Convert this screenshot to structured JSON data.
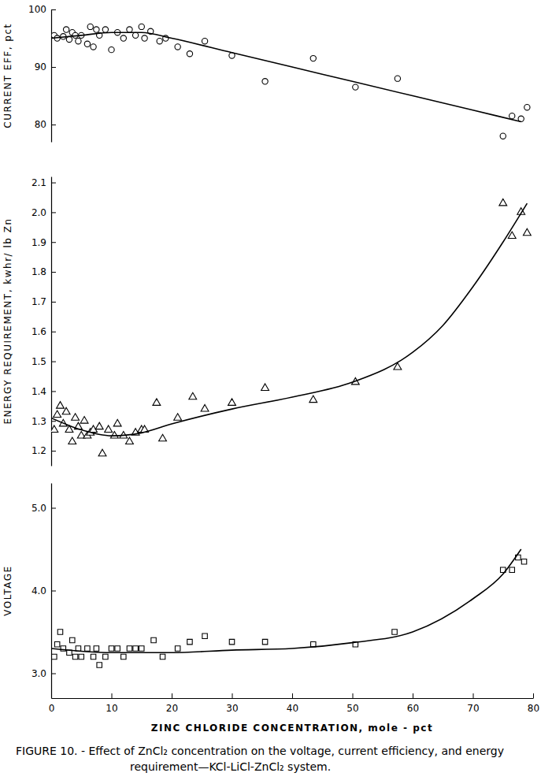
{
  "chart_data": [
    {
      "type": "scatter",
      "ylabel": "CURRENT EFF, pct",
      "xlim": [
        0,
        80
      ],
      "ylim": [
        77,
        100
      ],
      "yticks": [
        80,
        90,
        100
      ],
      "tick_labels": "y",
      "series": [
        {
          "type": "scatter",
          "marker": "circle",
          "color": "#000000",
          "x": [
            0.5,
            1,
            2,
            2.5,
            3,
            3.5,
            4,
            4.5,
            5,
            6,
            6.5,
            7,
            7.5,
            8,
            9,
            10,
            11,
            12,
            13,
            14,
            15,
            15.5,
            16.5,
            18,
            19,
            21,
            23,
            25.5,
            30,
            35.5,
            43.5,
            50.5,
            57.5,
            75,
            76.5,
            78,
            79
          ],
          "values": [
            95.5,
            95,
            95.3,
            96.5,
            94.8,
            96,
            95.5,
            94.5,
            95.5,
            94,
            97,
            93.5,
            96.5,
            95.5,
            96.5,
            93,
            96,
            95,
            96.5,
            95.5,
            97,
            95,
            96.2,
            94.5,
            95,
            93.5,
            92.3,
            94.5,
            92,
            87.5,
            91.5,
            86.5,
            88,
            78,
            81.5,
            81,
            83
          ]
        },
        {
          "type": "line",
          "line_style": "solid",
          "color": "#000000",
          "x": [
            0,
            5,
            10,
            15,
            20,
            30,
            40,
            50,
            60,
            70,
            78
          ],
          "values": [
            95,
            95.5,
            96,
            96,
            95,
            92.5,
            90,
            87.5,
            85,
            82.5,
            80.5
          ]
        }
      ]
    },
    {
      "type": "scatter",
      "ylabel": "ENERGY REQUIREMENT, kwhr/ lb Zn",
      "xlim": [
        0,
        80
      ],
      "ylim": [
        1.15,
        2.12
      ],
      "yticks": [
        1.2,
        1.3,
        1.4,
        1.5,
        1.6,
        1.7,
        1.8,
        1.9,
        {
          "value": 2.0,
          "label": "2.0"
        },
        2.1
      ],
      "tick_labels": "y",
      "series": [
        {
          "type": "scatter",
          "marker": "triangle",
          "color": "#000000",
          "x": [
            0.5,
            1,
            1.5,
            2,
            2.5,
            3,
            3.5,
            4,
            4.5,
            5,
            5.5,
            6,
            6.5,
            7,
            8,
            8.5,
            9.5,
            10.5,
            11,
            12,
            13,
            14,
            15,
            15.5,
            17.5,
            18.5,
            21,
            23.5,
            25.5,
            30,
            35.5,
            43.5,
            50.5,
            57.5,
            75,
            76.5,
            78,
            79
          ],
          "values": [
            1.27,
            1.32,
            1.35,
            1.29,
            1.33,
            1.27,
            1.23,
            1.31,
            1.28,
            1.25,
            1.3,
            1.25,
            1.26,
            1.27,
            1.28,
            1.19,
            1.27,
            1.25,
            1.29,
            1.25,
            1.23,
            1.26,
            1.27,
            1.27,
            1.36,
            1.24,
            1.31,
            1.38,
            1.34,
            1.36,
            1.41,
            1.37,
            1.43,
            1.48,
            2.03,
            1.92,
            2.0,
            1.93
          ]
        },
        {
          "type": "line",
          "line_style": "solid",
          "color": "#000000",
          "x": [
            0,
            5,
            10,
            15,
            20,
            30,
            40,
            50,
            60,
            65,
            70,
            75,
            79
          ],
          "values": [
            1.31,
            1.27,
            1.25,
            1.26,
            1.29,
            1.34,
            1.38,
            1.43,
            1.53,
            1.62,
            1.75,
            1.9,
            2.03
          ]
        }
      ]
    },
    {
      "type": "scatter",
      "ylabel": "VOLTAGE",
      "xlabel": "ZINC CHLORIDE CONCENTRATION, mole - pct",
      "title": "FIGURE 10. - Effect of ZnCl₂ concentration on the voltage, current efficiency, and energy requirement—KCl-LiCl-ZnCl₂ system.",
      "xlim": [
        0,
        80
      ],
      "xticks": [
        0,
        10,
        20,
        30,
        40,
        50,
        60,
        70,
        80
      ],
      "ylim": [
        2.7,
        5.3
      ],
      "yticks": [
        {
          "value": 3.0,
          "label": "3.0"
        },
        {
          "value": 4.0,
          "label": "4.0"
        },
        {
          "value": 5.0,
          "label": "5.0"
        }
      ],
      "series": [
        {
          "type": "scatter",
          "marker": "square",
          "color": "#000000",
          "x": [
            0.5,
            1,
            1.5,
            2,
            3,
            3.5,
            4,
            4.5,
            5,
            6,
            7,
            7.5,
            8,
            9,
            10,
            11,
            12,
            13,
            14,
            15,
            17,
            18.5,
            21,
            23,
            25.5,
            30,
            35.5,
            43.5,
            50.5,
            57,
            75,
            76.5,
            77.5,
            78.5
          ],
          "values": [
            3.2,
            3.35,
            3.5,
            3.3,
            3.25,
            3.4,
            3.2,
            3.3,
            3.2,
            3.3,
            3.2,
            3.3,
            3.1,
            3.2,
            3.3,
            3.3,
            3.2,
            3.3,
            3.3,
            3.3,
            3.4,
            3.2,
            3.3,
            3.38,
            3.45,
            3.38,
            3.38,
            3.35,
            3.35,
            3.5,
            4.25,
            4.25,
            4.4,
            4.35
          ]
        },
        {
          "type": "line",
          "line_style": "solid",
          "color": "#000000",
          "x": [
            0,
            10,
            20,
            30,
            40,
            50,
            60,
            70,
            75,
            78
          ],
          "values": [
            3.3,
            3.25,
            3.25,
            3.28,
            3.3,
            3.37,
            3.5,
            3.9,
            4.2,
            4.5
          ]
        }
      ]
    }
  ]
}
